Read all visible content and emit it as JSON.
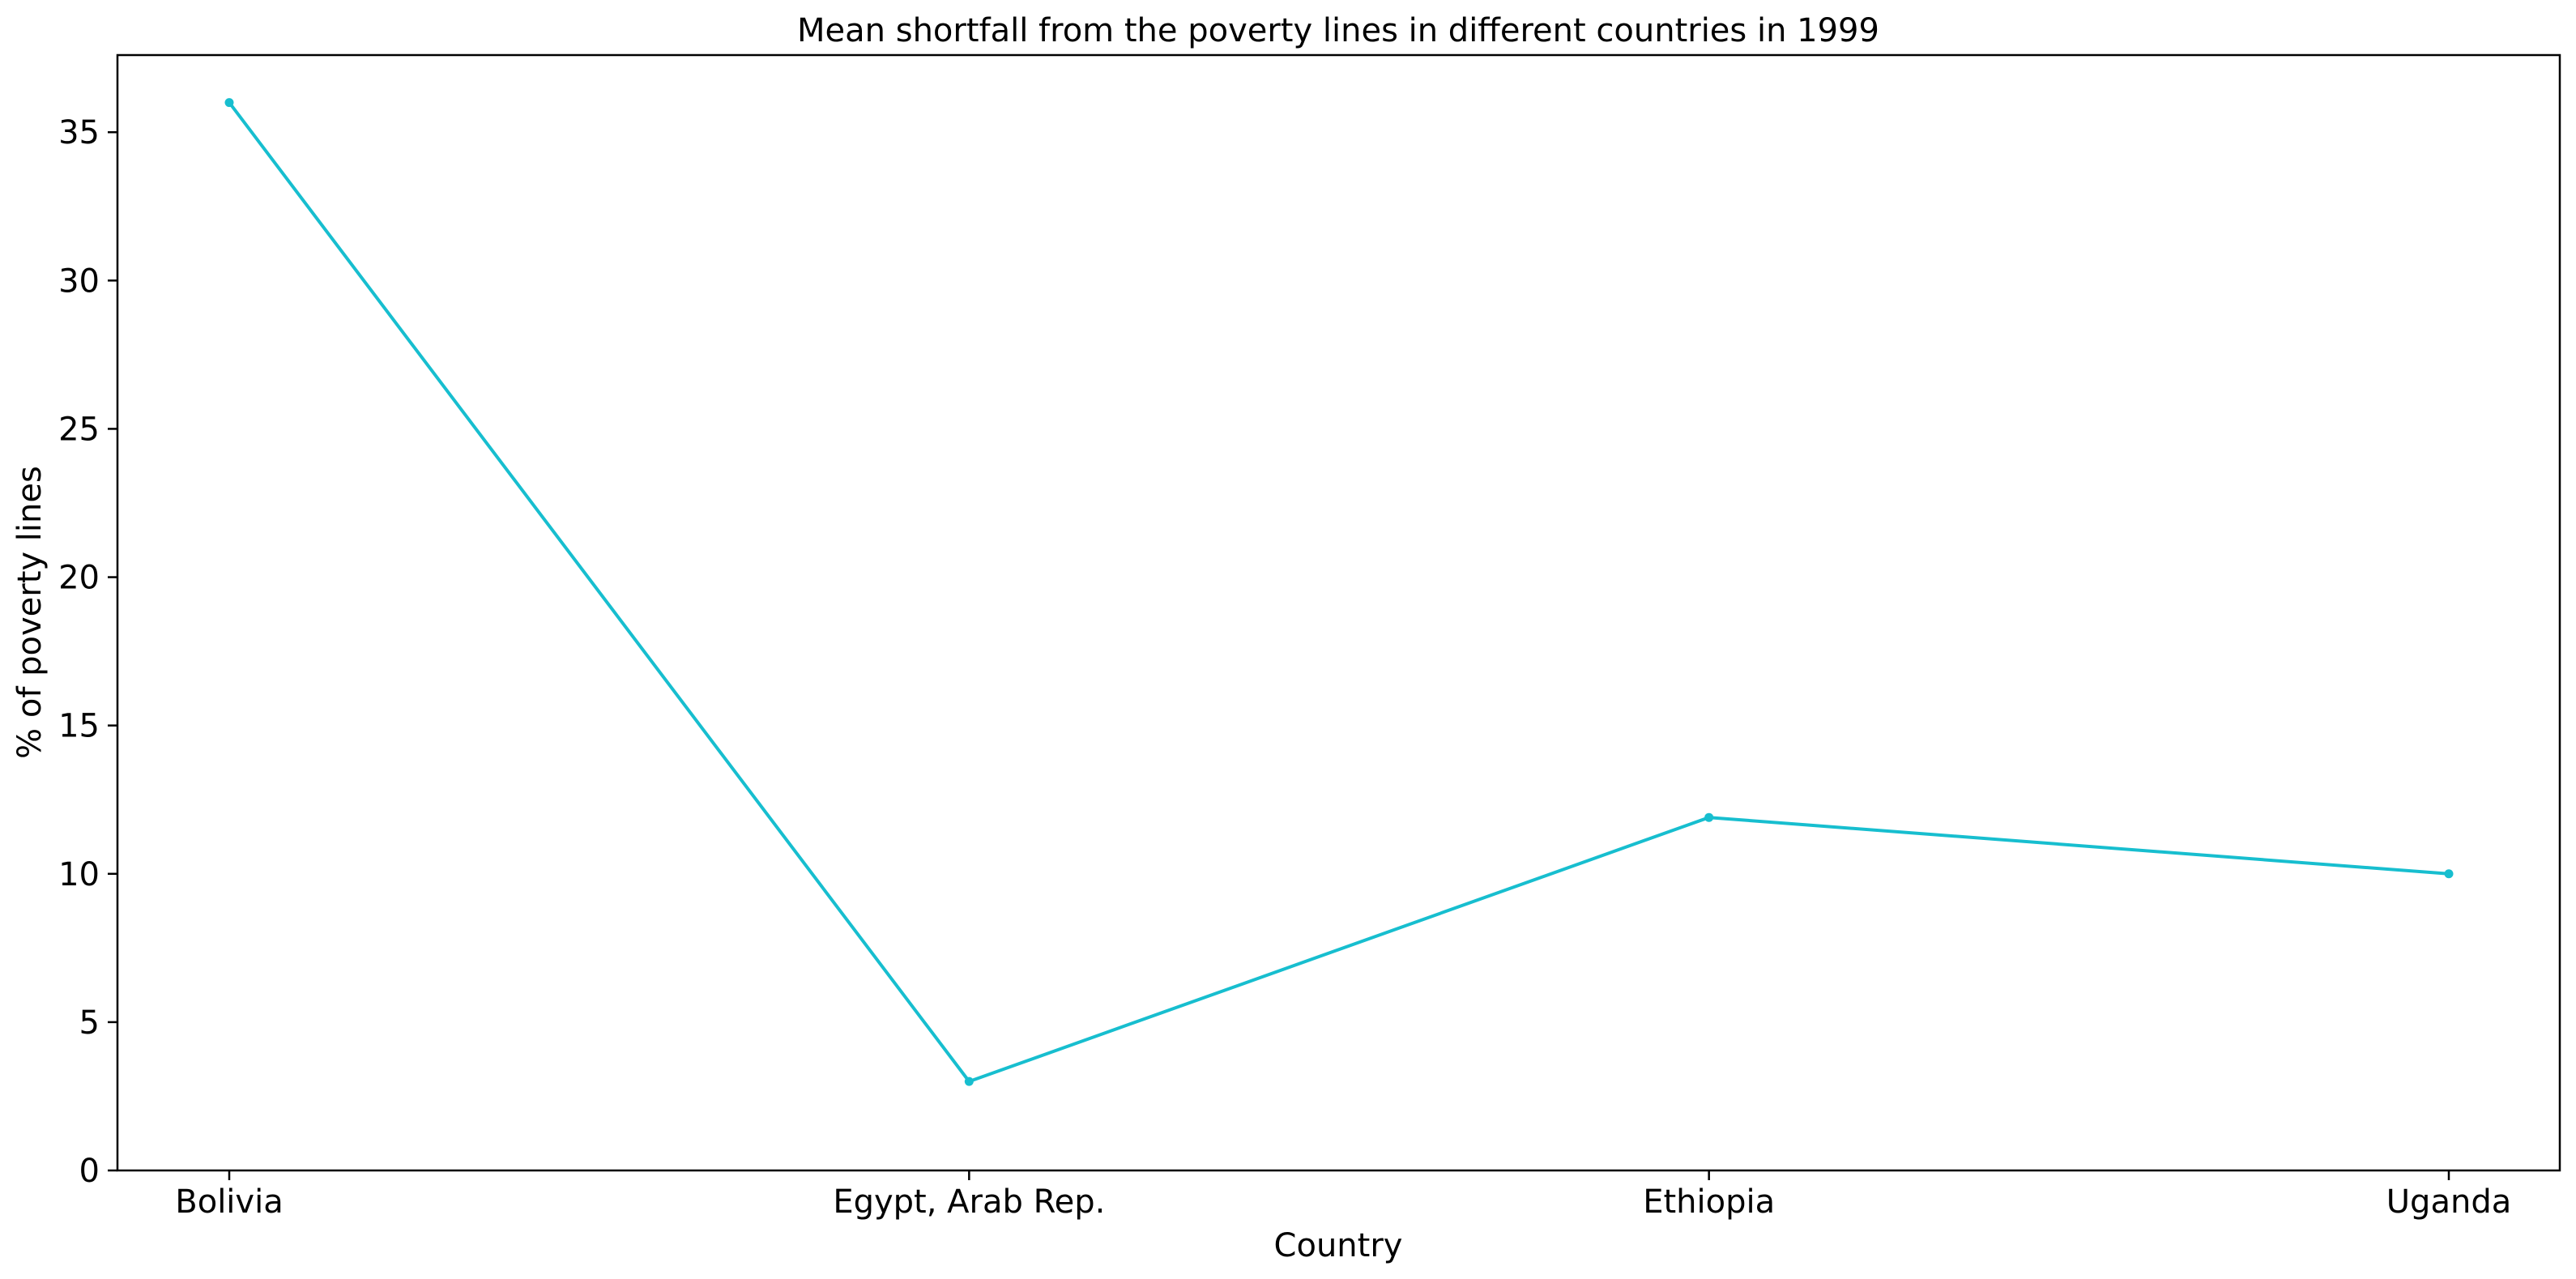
{
  "chart_data": {
    "type": "line",
    "title": "Mean shortfall from the poverty lines in different countries in 1999",
    "xlabel": "Country",
    "ylabel": "% of poverty lines",
    "categories": [
      "Bolivia",
      "Egypt, Arab Rep.",
      "Ethiopia",
      "Uganda"
    ],
    "series": [
      {
        "values": [
          36.0,
          3.0,
          11.9,
          10.0
        ],
        "color": "#17becf",
        "marker": "dot"
      }
    ],
    "ylim": [
      0,
      37.6
    ],
    "yticks": [
      0,
      5,
      10,
      15,
      20,
      25,
      30,
      35
    ],
    "grid": false,
    "legend": "none"
  }
}
